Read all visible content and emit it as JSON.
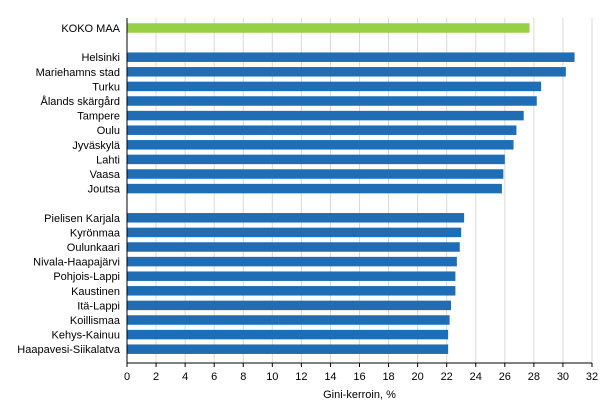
{
  "chart_data": {
    "type": "bar",
    "orientation": "horizontal",
    "title": "",
    "xlabel": "Gini-kerroin, %",
    "ylabel": "",
    "xlim": [
      0,
      32
    ],
    "x_ticks": [
      0,
      2,
      4,
      6,
      8,
      10,
      12,
      14,
      16,
      18,
      20,
      22,
      24,
      26,
      28,
      30,
      32
    ],
    "x_tick_labels": [
      "0",
      "2",
      "4",
      "6",
      "8",
      "10",
      "12",
      "14",
      "16",
      "18",
      "20",
      "22",
      "24",
      "26",
      "28",
      "30",
      "32"
    ],
    "grid": "vertical",
    "legend": "none",
    "colors": {
      "total": "#97d045",
      "regions": "#1f6eb5",
      "gridline": "#d9d9d9",
      "axis": "#000000"
    },
    "groups": [
      {
        "bars": [
          {
            "category": "KOKO MAA",
            "value": 27.7,
            "color_key": "total"
          }
        ]
      },
      {
        "bars": [
          {
            "category": "Helsinki",
            "value": 30.8,
            "color_key": "regions"
          },
          {
            "category": "Mariehamns stad",
            "value": 30.2,
            "color_key": "regions"
          },
          {
            "category": "Turku",
            "value": 28.5,
            "color_key": "regions"
          },
          {
            "category": "Ålands skärgård",
            "value": 28.2,
            "color_key": "regions"
          },
          {
            "category": "Tampere",
            "value": 27.3,
            "color_key": "regions"
          },
          {
            "category": "Oulu",
            "value": 26.8,
            "color_key": "regions"
          },
          {
            "category": "Jyväskylä",
            "value": 26.6,
            "color_key": "regions"
          },
          {
            "category": "Lahti",
            "value": 26.0,
            "color_key": "regions"
          },
          {
            "category": "Vaasa",
            "value": 25.9,
            "color_key": "regions"
          },
          {
            "category": "Joutsa",
            "value": 25.8,
            "color_key": "regions"
          }
        ]
      },
      {
        "bars": [
          {
            "category": "Pielisen Karjala",
            "value": 23.2,
            "color_key": "regions"
          },
          {
            "category": "Kyrönmaa",
            "value": 23.0,
            "color_key": "regions"
          },
          {
            "category": "Oulunkaari",
            "value": 22.9,
            "color_key": "regions"
          },
          {
            "category": "Nivala-Haapajärvi",
            "value": 22.7,
            "color_key": "regions"
          },
          {
            "category": "Pohjois-Lappi",
            "value": 22.6,
            "color_key": "regions"
          },
          {
            "category": "Kaustinen",
            "value": 22.6,
            "color_key": "regions"
          },
          {
            "category": "Itä-Lappi",
            "value": 22.3,
            "color_key": "regions"
          },
          {
            "category": "Koillismaa",
            "value": 22.2,
            "color_key": "regions"
          },
          {
            "category": "Kehys-Kainuu",
            "value": 22.1,
            "color_key": "regions"
          },
          {
            "category": "Haapavesi-Siikalatva",
            "value": 22.1,
            "color_key": "regions"
          }
        ]
      }
    ]
  }
}
